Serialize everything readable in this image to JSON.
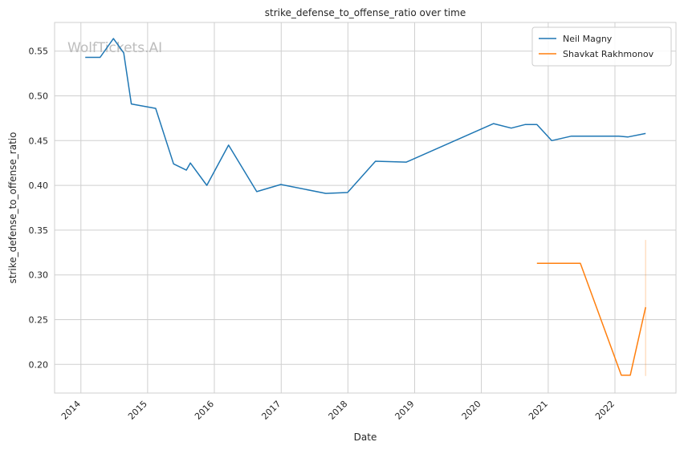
{
  "watermark": "WolfTickets.AI",
  "chart_data": {
    "type": "line",
    "title": "strike_defense_to_offense_ratio over time",
    "xlabel": "Date",
    "ylabel": "strike_defense_to_offense_ratio",
    "xlim": [
      "2013-08-10",
      "2022-12-01"
    ],
    "ylim": [
      0.168,
      0.582
    ],
    "x_ticks": [
      "2014",
      "2015",
      "2016",
      "2017",
      "2018",
      "2019",
      "2020",
      "2021",
      "2022"
    ],
    "y_ticks": [
      "0.20",
      "0.25",
      "0.30",
      "0.35",
      "0.40",
      "0.45",
      "0.50",
      "0.55"
    ],
    "grid": true,
    "legend_position": "top-right",
    "series": [
      {
        "name": "Neil Magny",
        "color": "#1f77b4",
        "points": [
          [
            "2014-01-25",
            0.543
          ],
          [
            "2014-04-16",
            0.543
          ],
          [
            "2014-06-28",
            0.564
          ],
          [
            "2014-08-23",
            0.548
          ],
          [
            "2014-10-04",
            0.491
          ],
          [
            "2015-02-14",
            0.486
          ],
          [
            "2015-05-23",
            0.424
          ],
          [
            "2015-08-01",
            0.417
          ],
          [
            "2015-08-23",
            0.425
          ],
          [
            "2015-11-21",
            0.4
          ],
          [
            "2016-03-19",
            0.445
          ],
          [
            "2016-08-20",
            0.393
          ],
          [
            "2016-12-30",
            0.401
          ],
          [
            "2017-09-02",
            0.391
          ],
          [
            "2017-12-30",
            0.392
          ],
          [
            "2018-06-01",
            0.427
          ],
          [
            "2018-11-17",
            0.426
          ],
          [
            "2020-03-08",
            0.469
          ],
          [
            "2020-06-13",
            0.464
          ],
          [
            "2020-08-29",
            0.468
          ],
          [
            "2020-10-31",
            0.468
          ],
          [
            "2021-01-20",
            0.45
          ],
          [
            "2021-05-08",
            0.455
          ],
          [
            "2022-01-22",
            0.455
          ],
          [
            "2022-03-12",
            0.454
          ],
          [
            "2022-06-18",
            0.458
          ]
        ]
      },
      {
        "name": "Shavkat Rakhmonov",
        "color": "#ff7f0e",
        "points": [
          [
            "2020-10-31",
            0.313
          ],
          [
            "2021-06-26",
            0.313
          ],
          [
            "2022-02-05",
            0.188
          ],
          [
            "2022-03-26",
            0.188
          ],
          [
            "2022-06-18",
            0.264
          ]
        ],
        "error_band": {
          "x": "2022-06-18",
          "low": 0.187,
          "high": 0.339
        }
      }
    ]
  }
}
